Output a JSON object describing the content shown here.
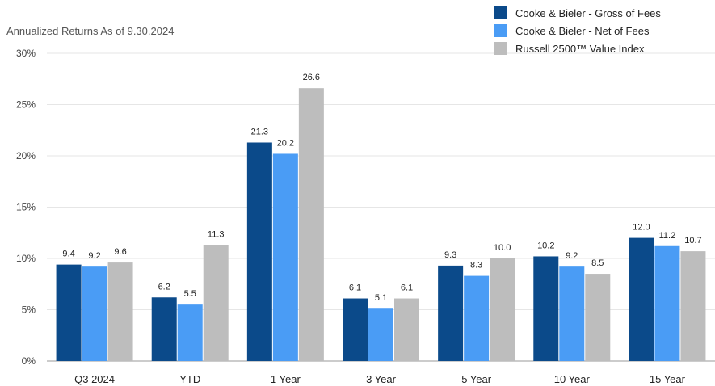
{
  "chart_data": {
    "type": "bar",
    "title": "Annualized Returns As of 9.30.2024",
    "categories": [
      "Q3 2024",
      "YTD",
      "1 Year",
      "3 Year",
      "5 Year",
      "10 Year",
      "15 Year"
    ],
    "series": [
      {
        "name": "Cooke & Bieler - Gross of Fees",
        "color": "#0b4a8a",
        "values": [
          9.4,
          6.2,
          21.3,
          6.1,
          9.3,
          10.2,
          12.0
        ]
      },
      {
        "name": "Cooke & Bieler - Net of Fees",
        "color": "#4a9cf5",
        "values": [
          9.2,
          5.5,
          20.2,
          5.1,
          8.3,
          9.2,
          11.2
        ]
      },
      {
        "name": "Russell 2500™ Value Index",
        "color": "#bdbdbd",
        "values": [
          9.6,
          11.3,
          26.6,
          6.1,
          10.0,
          8.5,
          10.7
        ]
      }
    ],
    "ylim": [
      0,
      30
    ],
    "yticks": [
      "0%",
      "5%",
      "10%",
      "15%",
      "20%",
      "25%",
      "30%"
    ],
    "grid": true,
    "legend": "top-right"
  }
}
